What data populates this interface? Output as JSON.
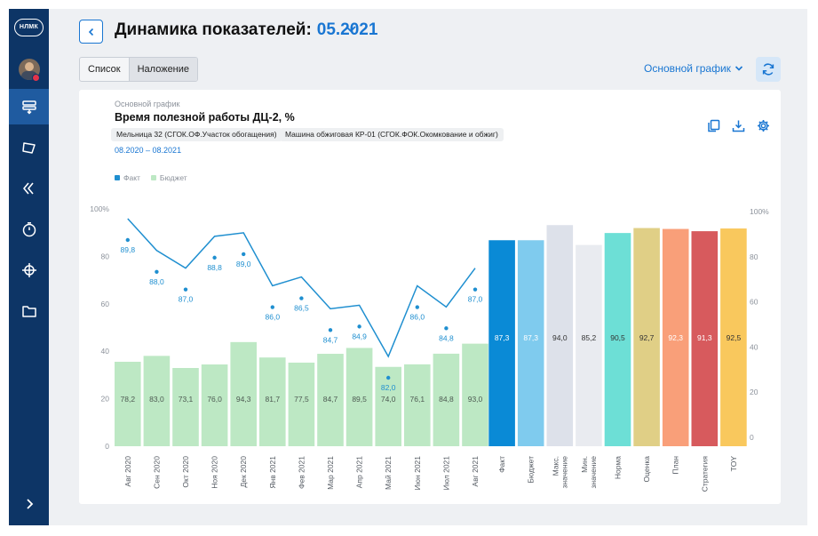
{
  "app": {
    "logo_text": "НЛМК"
  },
  "header": {
    "title": "Динамика показателей:",
    "period": "05.2021"
  },
  "view_switch": {
    "list_label": "Список",
    "overlay_label": "Наложение"
  },
  "chart_selector": {
    "label": "Основной график"
  },
  "card": {
    "subtitle": "Основной график",
    "title": "Время полезной работы ДЦ-2, %",
    "filters": [
      "Мельница 32 (СГОК.ОФ.Участок обогащения)",
      "Машина обжиговая КР-01 (СГОК.ФОК.Окомкование и обжиг)"
    ],
    "date_range": "08.2020 – 08.2021"
  },
  "sidebar": {
    "icons": [
      "layers-icon",
      "polygon-icon",
      "chevrons-icon",
      "timer-icon",
      "crosshair-icon",
      "folder-icon"
    ],
    "active_index": 0
  },
  "colors": {
    "accent": "#1976d2",
    "sidebar": "#0d3566",
    "fact": "#1f8fd0",
    "budget": "#bde8c4"
  },
  "chart_data": {
    "type": "bar",
    "legend": [
      {
        "name": "Факт",
        "color": "#1f8fd0"
      },
      {
        "name": "Бюджет",
        "color": "#bde8c4"
      }
    ],
    "ylim": [
      0,
      100
    ],
    "yticks_left": [
      "0",
      "20",
      "40",
      "60",
      "80",
      "100%"
    ],
    "yticks_right": [
      "0",
      "20",
      "40",
      "60",
      "80",
      "100%"
    ],
    "months": [
      "Авг 2020",
      "Сен 2020",
      "Окт 2020",
      "Ноя 2020",
      "Дек 2020",
      "Янв 2021",
      "Фев 2021",
      "Мар 2021",
      "Апр 2021",
      "Май 2021",
      "Июн 2021",
      "Июл 2021",
      "Авг 2021"
    ],
    "budget_values": [
      78.2,
      83.0,
      73.1,
      76.0,
      94.3,
      81.7,
      77.5,
      84.7,
      89.5,
      74.0,
      76.1,
      84.8,
      93.0
    ],
    "budget_labels": [
      "78,2",
      "83,0",
      "73,1",
      "76,0",
      "94,3",
      "81,7",
      "77,5",
      "84,7",
      "89,5",
      "74,0",
      "76,1",
      "84,8",
      "93,0"
    ],
    "fact_values": [
      89.8,
      88.0,
      87.0,
      88.8,
      89.0,
      86.0,
      86.5,
      84.7,
      84.9,
      82.0,
      86.0,
      84.8,
      87.0
    ],
    "fact_labels": [
      "89,8",
      "88,0",
      "87,0",
      "88,8",
      "89,0",
      "86,0",
      "86,5",
      "84,7",
      "84,9",
      "82,0",
      "86,0",
      "84,8",
      "87,0"
    ],
    "summary_categories": [
      "Факт",
      "Бюджет",
      "Макс. значение",
      "Мин. значение",
      "Норма",
      "Оценка",
      "План",
      "Стратегия",
      "TOY"
    ],
    "summary_values": [
      87.3,
      87.3,
      94.0,
      85.2,
      90.5,
      92.7,
      92.3,
      91.3,
      92.5
    ],
    "summary_labels": [
      "87,3",
      "87,3",
      "94,0",
      "85,2",
      "90,5",
      "92,7",
      "92,3",
      "91,3",
      "92,5"
    ],
    "summary_colors": [
      "#0a8ad6",
      "#7fcbee",
      "#dde1ea",
      "#e9ebf0",
      "#6ddfd6",
      "#e0cf86",
      "#f99f79",
      "#d75a5d",
      "#f9c85d"
    ],
    "summary_label_colors": [
      "#ffffff",
      "#ffffff",
      "#333333",
      "#333333",
      "#333333",
      "#333333",
      "#ffffff",
      "#ffffff",
      "#333333"
    ],
    "grid": false
  }
}
